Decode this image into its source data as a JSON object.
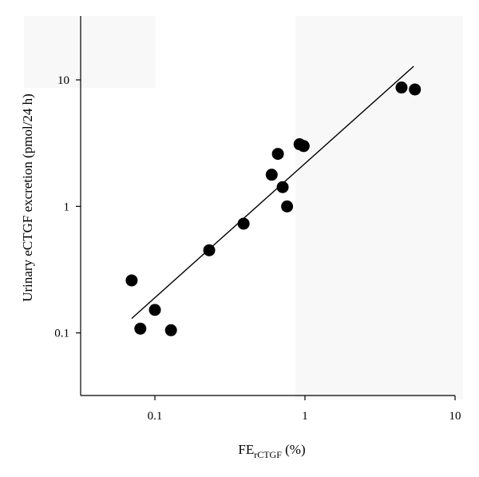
{
  "chart_data": {
    "type": "scatter",
    "xlabel": {
      "main": "FE",
      "sub": "rCTGF",
      "unit": " (%)"
    },
    "ylabel": "Urinary eCTGF excretion (pmol/24 h)",
    "x_scale": "log",
    "y_scale": "log",
    "xlim": [
      0.032,
      10
    ],
    "ylim": [
      0.032,
      32
    ],
    "x_ticks": [
      {
        "value": 0.1,
        "label": "0.1"
      },
      {
        "value": 1,
        "label": "1"
      },
      {
        "value": 10,
        "label": "10"
      }
    ],
    "y_ticks": [
      {
        "value": 0.1,
        "label": "0.1"
      },
      {
        "value": 1,
        "label": "1"
      },
      {
        "value": 10,
        "label": "10"
      }
    ],
    "points": [
      {
        "x": 0.07,
        "y": 0.26
      },
      {
        "x": 0.08,
        "y": 0.108
      },
      {
        "x": 0.1,
        "y": 0.152
      },
      {
        "x": 0.128,
        "y": 0.105
      },
      {
        "x": 0.23,
        "y": 0.45
      },
      {
        "x": 0.39,
        "y": 0.73
      },
      {
        "x": 0.6,
        "y": 1.78
      },
      {
        "x": 0.66,
        "y": 2.6
      },
      {
        "x": 0.71,
        "y": 1.42
      },
      {
        "x": 0.76,
        "y": 1.0
      },
      {
        "x": 0.92,
        "y": 3.1
      },
      {
        "x": 0.98,
        "y": 3.0
      },
      {
        "x": 4.4,
        "y": 8.7
      },
      {
        "x": 5.4,
        "y": 8.4
      }
    ],
    "fit_line": {
      "x": [
        0.07,
        5.3
      ],
      "y": [
        0.13,
        12.8
      ]
    },
    "grid": false,
    "legend": "none"
  }
}
